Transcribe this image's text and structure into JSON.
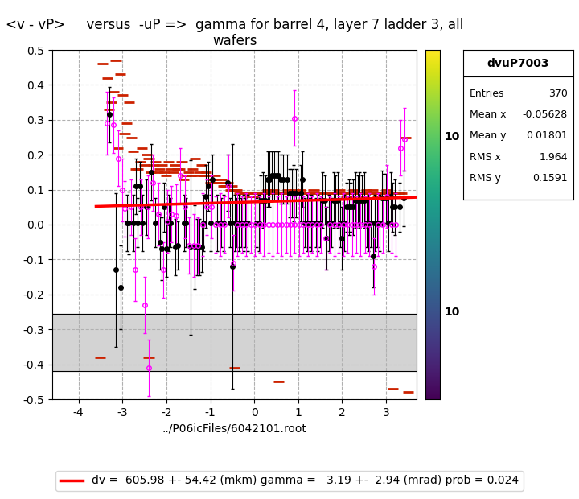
{
  "chart_data": {
    "type": "scatter",
    "title": "<v - vP>     versus  -uP =>  gamma for barrel 4, layer 7 ladder 3, all wafers",
    "x_label": "../P06icFiles/6042101.root",
    "xlim": [
      -4.6,
      3.7
    ],
    "xticks": [
      -4,
      -3,
      -2,
      -1,
      0,
      1,
      2,
      3
    ],
    "ylim": [
      -0.5,
      0.5
    ],
    "yticks": [
      -0.5,
      -0.4,
      -0.3,
      -0.2,
      -0.1,
      {
        "value": 0,
        "label": "0.0"
      },
      0.1,
      0.2,
      0.3,
      0.4,
      0.5
    ],
    "grid": true,
    "legend": "lower center",
    "shaded_band": [
      -0.42,
      -0.255
    ],
    "annotations": [
      "10",
      "10"
    ],
    "stats_box": {
      "title": "dvuP7003",
      "rows": [
        {
          "label": "Entries",
          "value": "370"
        },
        {
          "label": "Mean x",
          "value": "-0.05628"
        },
        {
          "label": "Mean y",
          "value": "0.01801"
        },
        {
          "label": "RMS x",
          "value": "1.964"
        },
        {
          "label": "RMS y",
          "value": "0.1591"
        }
      ]
    },
    "series": [
      {
        "type": "x_error_bars",
        "color": "#cc2200",
        "marker": "none",
        "line_style": "none",
        "x_err": 0.12,
        "x": [
          -3.45,
          -3.3,
          -3.15,
          -3.0,
          -2.85,
          -2.7,
          -2.55,
          -2.4,
          -2.25,
          -2.1,
          -1.95,
          -1.8,
          -1.65,
          -1.5,
          -1.35,
          -1.2,
          -1.05,
          -0.9,
          -0.75,
          -0.6,
          -0.45,
          -0.3,
          -0.15,
          0.0,
          0.15,
          0.3,
          0.45,
          0.6,
          0.75,
          0.9,
          1.05,
          1.2,
          1.35,
          1.5,
          1.65,
          1.8,
          1.95,
          2.1,
          2.25,
          2.4,
          2.55,
          2.7,
          2.85,
          3.0,
          3.15,
          3.3,
          3.45,
          -3.35,
          -3.2,
          -3.05,
          -2.9,
          -2.75,
          -2.6,
          -2.45,
          -2.3,
          -2.15,
          -2.0,
          -1.85,
          -1.7,
          -1.55,
          -1.4,
          -1.25,
          -1.1,
          -0.95,
          -0.8,
          -0.65,
          -0.5,
          -0.35,
          -0.2,
          -0.05,
          0.1,
          0.25,
          0.4,
          0.55,
          0.7,
          0.85,
          1.0,
          1.15,
          1.3,
          1.45,
          1.6,
          1.75,
          1.9,
          2.05,
          2.2,
          2.35,
          2.5,
          2.65,
          2.8,
          2.95,
          3.1,
          3.25,
          3.4,
          -3.25,
          -3.1,
          -2.95,
          -2.8,
          -2.65,
          -2.5,
          -2.35,
          -2.2,
          -2.05,
          -1.9,
          -1.75,
          -1.6,
          -1.45,
          -1.3,
          -1.15,
          -1.0,
          -0.85,
          -0.7,
          -0.55,
          -0.4,
          -0.25,
          -0.1,
          0.05,
          0.2,
          0.35,
          0.5,
          0.65,
          0.8,
          0.95,
          1.1,
          1.25,
          1.4,
          1.55,
          1.7,
          1.85,
          2.0,
          2.15,
          2.3,
          2.45,
          2.6,
          2.75,
          2.9,
          3.05,
          3.2,
          3.35,
          -3.5,
          -2.4,
          -0.45,
          0.55,
          3.15,
          3.5
        ],
        "values": [
          0.46,
          0.33,
          0.47,
          0.37,
          0.35,
          0.16,
          0.22,
          0.19,
          0.18,
          0.17,
          0.18,
          0.17,
          0.18,
          0.15,
          0.19,
          0.17,
          0.14,
          0.14,
          0.13,
          0.12,
          0.1,
          0.09,
          0.09,
          0.08,
          0.09,
          0.1,
          0.1,
          0.09,
          0.1,
          0.1,
          0.1,
          0.09,
          0.1,
          0.09,
          0.09,
          0.09,
          0.1,
          0.08,
          0.1,
          0.09,
          0.1,
          0.1,
          0.09,
          0.1,
          0.08,
          0.09,
          0.25,
          0.42,
          0.38,
          0.43,
          0.29,
          0.21,
          0.18,
          0.2,
          0.17,
          0.16,
          0.14,
          0.15,
          0.16,
          0.14,
          0.16,
          0.15,
          0.15,
          0.13,
          0.12,
          0.11,
          0.11,
          0.09,
          0.09,
          0.08,
          0.09,
          0.09,
          0.09,
          0.09,
          0.09,
          0.09,
          0.09,
          0.09,
          0.09,
          0.09,
          0.09,
          0.09,
          0.09,
          0.09,
          0.08,
          0.09,
          0.08,
          0.09,
          0.08,
          0.09,
          0.08,
          0.08,
          0.08,
          0.35,
          0.22,
          0.26,
          0.25,
          0.16,
          0.17,
          0.15,
          0.15,
          0.15,
          0.16,
          0.16,
          0.13,
          0.14,
          0.14,
          0.14,
          0.12,
          0.12,
          0.11,
          0.1,
          0.1,
          0.09,
          0.08,
          0.09,
          0.09,
          0.09,
          0.09,
          0.09,
          0.09,
          0.09,
          0.09,
          0.09,
          0.09,
          0.09,
          0.09,
          0.09,
          0.09,
          0.09,
          0.09,
          0.09,
          0.09,
          0.09,
          0.09,
          0.09,
          0.09,
          0.09,
          -0.38,
          -0.38,
          -0.41,
          -0.45,
          -0.47,
          -0.48
        ]
      },
      {
        "type": "y_error_bars",
        "color": "black",
        "marker": "o",
        "line_style": "none",
        "x": [
          -3.3,
          -3.15,
          -3.05,
          -2.85,
          -2.7,
          -2.6,
          -2.45,
          -2.35,
          -2.25,
          -2.15,
          -2.1,
          -2.05,
          -2.0,
          -1.8,
          -1.75,
          -1.45,
          -1.35,
          -1.3,
          -1.25,
          -1.2,
          -1.15,
          -1.1,
          -1.05,
          -1.0,
          -0.95,
          -0.6,
          -0.5,
          0.3,
          0.35,
          0.4,
          0.45,
          0.5,
          0.55,
          0.6,
          0.65,
          0.75,
          0.8,
          0.85,
          0.9,
          0.95,
          1.1,
          1.65,
          2.0,
          2.3,
          2.45,
          2.5,
          2.7,
          2.9,
          3.0,
          3.1,
          3.2,
          3.3,
          3.4,
          -2.9,
          -2.75,
          -2.65,
          -2.55,
          -1.95,
          -1.9,
          -1.6,
          -1.55,
          -0.85,
          -0.75,
          -0.7,
          -0.55,
          -0.45,
          -0.4,
          -0.35,
          -0.3,
          -0.25,
          -0.2,
          -0.15,
          0.05,
          0.1,
          0.15,
          0.2,
          0.25,
          1.05,
          1.15,
          1.2,
          1.25,
          1.3,
          1.4,
          1.45,
          1.5,
          1.55,
          1.6,
          1.7,
          1.75,
          1.8,
          1.85,
          1.9,
          1.95,
          2.05,
          2.1,
          2.15,
          2.2,
          2.25,
          2.35,
          2.4,
          2.55,
          2.6,
          2.65,
          2.75,
          2.8,
          2.85,
          2.95,
          3.05,
          3.15
        ],
        "values": [
          0.315,
          -0.13,
          -0.18,
          0.005,
          0.11,
          0.11,
          0.05,
          0.15,
          0.005,
          -0.05,
          -0.07,
          0.05,
          -0.07,
          -0.065,
          -0.06,
          -0.065,
          -0.065,
          -0.065,
          -0.065,
          -0.065,
          0.005,
          0.08,
          0.11,
          0.005,
          0.13,
          0.12,
          -0.12,
          0.13,
          0.13,
          0.14,
          0.14,
          0.14,
          0.14,
          0.13,
          0.13,
          0.13,
          0.09,
          0.09,
          0.09,
          0.09,
          0.13,
          -0.04,
          -0.04,
          0.07,
          0.07,
          0.07,
          -0.09,
          0.075,
          0.075,
          0.08,
          0.05,
          0.05,
          0.075,
          0.005,
          0.005,
          0.005,
          0.005,
          0.005,
          0.005,
          0.005,
          0.005,
          0.005,
          0.005,
          0.005,
          0.005,
          0.005,
          0.005,
          0.005,
          0.005,
          0.005,
          0.005,
          0.005,
          0.005,
          0.005,
          0.07,
          0.07,
          0.07,
          0.09,
          0.005,
          0.005,
          0.005,
          0.005,
          0.005,
          0.005,
          0.005,
          0.07,
          0.07,
          0.005,
          0.005,
          0.07,
          0.07,
          0.07,
          0.005,
          0.005,
          0.05,
          0.05,
          0.05,
          0.05,
          0.07,
          0.07,
          0.005,
          0.005,
          0.005,
          0.005,
          0.005,
          0.005,
          0.075,
          0.005,
          0.05
        ],
        "y_err": [
          0.08,
          0.22,
          0.12,
          0.09,
          0.08,
          0.07,
          0.08,
          0.08,
          0.07,
          0.08,
          0.09,
          0.07,
          0.08,
          0.08,
          0.07,
          0.25,
          0.12,
          0.08,
          0.08,
          0.07,
          0.08,
          0.09,
          0.07,
          0.08,
          0.07,
          0.08,
          0.35,
          0.08,
          0.08,
          0.07,
          0.07,
          0.07,
          0.07,
          0.07,
          0.07,
          0.07,
          0.07,
          0.07,
          0.08,
          0.07,
          0.08,
          0.09,
          0.09,
          0.08,
          0.07,
          0.08,
          0.09,
          0.08,
          0.07,
          0.07,
          0.08,
          0.07,
          0.08,
          0.08,
          0.08,
          0.07,
          0.08,
          0.08,
          0.07,
          0.08,
          0.07,
          0.08,
          0.07,
          0.08,
          0.07,
          0.08,
          0.07,
          0.08,
          0.07,
          0.08,
          0.07,
          0.08,
          0.07,
          0.08,
          0.07,
          0.08,
          0.07,
          0.08,
          0.07,
          0.08,
          0.07,
          0.08,
          0.07,
          0.08,
          0.07,
          0.08,
          0.07,
          0.08,
          0.07,
          0.08,
          0.07,
          0.08,
          0.07,
          0.08,
          0.07,
          0.08,
          0.07,
          0.08,
          0.07,
          0.08,
          0.07,
          0.08,
          0.07,
          0.08,
          0.07,
          0.08,
          0.07,
          0.08,
          0.07
        ]
      },
      {
        "type": "y_error_bars",
        "color": "magenta",
        "marker": "open_circle",
        "line_style": "none",
        "x": [
          -3.35,
          -3.2,
          -3.1,
          -3.0,
          -2.95,
          -2.8,
          -2.72,
          -2.58,
          -2.5,
          -2.42,
          -2.3,
          -2.18,
          -2.08,
          -1.98,
          -1.88,
          -1.78,
          -1.68,
          -1.58,
          -1.48,
          -1.38,
          -1.28,
          -1.18,
          -1.08,
          -0.98,
          -0.88,
          -0.78,
          -0.68,
          -0.58,
          -0.48,
          -0.38,
          -0.28,
          -0.18,
          -0.08,
          0.02,
          0.12,
          0.22,
          0.32,
          0.42,
          0.52,
          0.62,
          0.72,
          0.82,
          0.92,
          1.02,
          1.12,
          1.22,
          1.32,
          1.42,
          1.52,
          1.62,
          1.72,
          1.82,
          1.92,
          2.02,
          2.12,
          2.22,
          2.32,
          2.42,
          2.52,
          2.62,
          2.72,
          2.82,
          2.92,
          3.02,
          3.12,
          3.22,
          3.32,
          3.42,
          -2.4,
          0.92
        ],
        "values": [
          0.29,
          0.285,
          0.19,
          0.1,
          0.045,
          0.05,
          -0.13,
          0.05,
          -0.23,
          0.05,
          0.12,
          0.03,
          -0.13,
          0.01,
          0.03,
          0.025,
          0.14,
          0.05,
          -0.06,
          -0.06,
          -0.06,
          0.0,
          0.05,
          0.05,
          0.0,
          0.0,
          0.0,
          0.11,
          -0.11,
          0.0,
          0.0,
          0.0,
          0.0,
          0.0,
          0.0,
          0.0,
          0.0,
          0.0,
          0.0,
          0.0,
          0.0,
          0.0,
          0.0,
          0.0,
          0.0,
          0.0,
          0.0,
          0.0,
          0.0,
          -0.04,
          0.0,
          0.0,
          0.0,
          0.0,
          0.0,
          0.0,
          0.0,
          0.0,
          0.0,
          0.0,
          -0.12,
          0.0,
          0.0,
          0.08,
          0.0,
          0.0,
          0.22,
          0.245,
          -0.41,
          0.305
        ],
        "y_err": [
          0.09,
          0.08,
          0.08,
          0.09,
          0.08,
          0.08,
          0.09,
          0.08,
          0.08,
          0.09,
          0.08,
          0.09,
          0.08,
          0.09,
          0.08,
          0.09,
          0.08,
          0.09,
          0.08,
          0.09,
          0.08,
          0.09,
          0.08,
          0.09,
          0.08,
          0.09,
          0.08,
          0.09,
          0.08,
          0.09,
          0.08,
          0.09,
          0.08,
          0.09,
          0.08,
          0.09,
          0.08,
          0.09,
          0.08,
          0.09,
          0.08,
          0.09,
          0.08,
          0.09,
          0.08,
          0.09,
          0.08,
          0.09,
          0.08,
          0.09,
          0.08,
          0.09,
          0.08,
          0.09,
          0.08,
          0.09,
          0.08,
          0.09,
          0.08,
          0.09,
          0.08,
          0.09,
          0.08,
          0.09,
          0.08,
          0.09,
          0.08,
          0.09,
          0.08,
          0.08
        ]
      },
      {
        "type": "line",
        "name": "dv =  605.98 +- 54.42 (mkm) gamma =   3.19 +-  2.94 (mrad) prob = 0.024",
        "color": "red",
        "line_style": "solid",
        "x": [
          -3.6,
          3.7
        ],
        "values": [
          0.052,
          0.078
        ]
      }
    ]
  }
}
